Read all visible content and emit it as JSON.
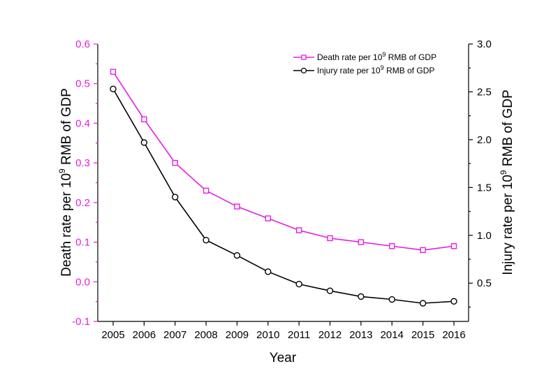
{
  "chart_data": {
    "type": "line",
    "x": [
      2005,
      2006,
      2007,
      2008,
      2009,
      2010,
      2011,
      2012,
      2013,
      2014,
      2015,
      2016
    ],
    "xlabel": "Year",
    "ylabel_left": {
      "pre": "Death rate per 10",
      "sup": "9",
      "post": " RMB of GDP"
    },
    "ylabel_right": {
      "pre": "Injury rate per 10",
      "sup": "9",
      "post": " RMB of GDP"
    },
    "ylim_left": [
      -0.1,
      0.6
    ],
    "yticks_left": [
      -0.1,
      0.0,
      0.1,
      0.2,
      0.3,
      0.4,
      0.5,
      0.6
    ],
    "ytick_labels_left": [
      "-0.1",
      "0.0",
      "0.1",
      "0.2",
      "0.3",
      "0.4",
      "0.5",
      "0.6"
    ],
    "ylim_right": [
      0.1,
      3.0
    ],
    "yticks_right": [
      0.5,
      1.0,
      1.5,
      2.0,
      2.5,
      3.0
    ],
    "ytick_labels_right": [
      "0.5",
      "1.0",
      "1.5",
      "2.0",
      "2.5",
      "3.0"
    ],
    "legend_position": "top-right",
    "series": [
      {
        "name": "Death rate per 10^9 RMB of GDP",
        "legend": {
          "pre": "Death rate per 10",
          "sup": "9",
          "post": " RMB of GDP"
        },
        "axis": "left",
        "marker": "square",
        "color": "#e61ee6",
        "values": [
          0.53,
          0.41,
          0.3,
          0.23,
          0.19,
          0.16,
          0.13,
          0.11,
          0.1,
          0.09,
          0.08,
          0.09
        ]
      },
      {
        "name": "Injury rate per 10^9 RMB of GDP",
        "legend": {
          "pre": "Injury rate per 10",
          "sup": "9",
          "post": " RMB of GDP"
        },
        "axis": "right",
        "marker": "circle",
        "color": "#000000",
        "values": [
          2.53,
          1.97,
          1.4,
          0.95,
          0.79,
          0.62,
          0.49,
          0.42,
          0.36,
          0.33,
          0.29,
          0.31
        ]
      }
    ]
  },
  "colors": {
    "left_axis": "#e61ee6",
    "right_axis": "#000000"
  }
}
